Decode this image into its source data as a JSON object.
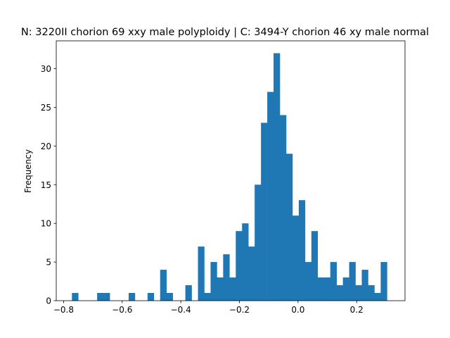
{
  "chart_data": {
    "type": "bar",
    "title": "N: 3220II chorion 69 xxy male polyploidy | C: 3494-Y chorion 46 xy male normal",
    "xlabel": "",
    "ylabel": "Frequency",
    "xlim": [
      -0.825,
      0.365
    ],
    "ylim": [
      0,
      33.6
    ],
    "bar_color": "#1f77b4",
    "grid": false,
    "x_ticks": [
      -0.8,
      -0.6,
      -0.4,
      -0.2,
      0.0,
      0.2
    ],
    "x_tick_labels": [
      "−0.8",
      "−0.6",
      "−0.4",
      "−0.2",
      "0.0",
      "0.2"
    ],
    "y_ticks": [
      0,
      5,
      10,
      15,
      20,
      25,
      30
    ],
    "y_tick_labels": [
      "0",
      "5",
      "10",
      "15",
      "20",
      "25",
      "30"
    ],
    "bin_start": -0.7715,
    "bin_width": 0.0215,
    "values": [
      1,
      0,
      0,
      0,
      1,
      1,
      0,
      0,
      0,
      1,
      0,
      0,
      1,
      0,
      4,
      1,
      0,
      0,
      2,
      0,
      7,
      1,
      5,
      3,
      6,
      3,
      9,
      10,
      7,
      15,
      23,
      27,
      32,
      24,
      19,
      11,
      13,
      5,
      9,
      3,
      3,
      5,
      2,
      3,
      5,
      2,
      4,
      2,
      1,
      5
    ]
  }
}
